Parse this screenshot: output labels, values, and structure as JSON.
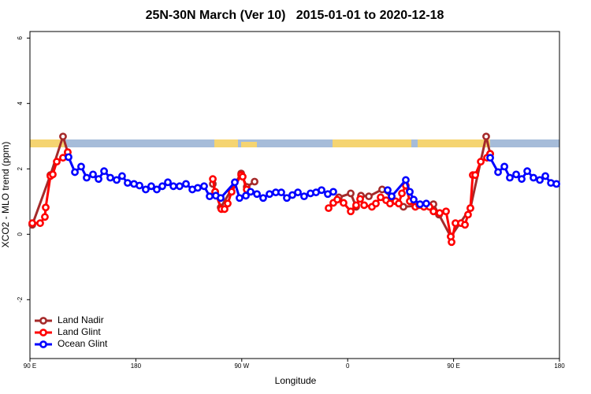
{
  "chart_data": {
    "type": "line",
    "title": "25N-30N March (Ver 10)   2015-01-01 to 2020-12-18",
    "xlabel": "Longitude",
    "ylabel": "XCO2 - MLO trend (ppm)",
    "xlim": [
      90,
      540
    ],
    "ylim": [
      -3.8,
      6.2
    ],
    "xticks": [
      {
        "value": 90,
        "label": "90 E"
      },
      180,
      {
        "value": 270,
        "label": "90 W"
      },
      {
        "value": 360,
        "label": "0"
      },
      {
        "value": 450,
        "label": "90 E"
      },
      {
        "value": 540,
        "label": "180"
      }
    ],
    "yticks": [
      -2,
      0,
      2,
      4,
      6
    ],
    "legend": "bottom-left",
    "series": [
      {
        "name": "Land Nadir",
        "color": "#a52a2a",
        "x": [
          92.0,
          107.4,
          118.1,
          122.1,
          null,
          245.4,
          247.4,
          252.1,
          269.5,
          274.2,
          280.9,
          null,
          352.5,
          362.6,
          367.2,
          371.3,
          378.0,
          389.3,
          407.4,
          432.9,
          437.6,
          447.6,
          464.3,
          477.7,
          481.1
        ],
        "values": [
          0.29,
          1.81,
          2.99,
          2.51,
          null,
          1.54,
          1.3,
          0.82,
          1.86,
          1.45,
          1.61,
          null,
          1.13,
          1.25,
          0.84,
          1.18,
          1.16,
          1.37,
          0.84,
          0.92,
          0.6,
          -0.07,
          0.8,
          2.99,
          2.46
        ]
      },
      {
        "name": "Land Glint",
        "color": "#ff0000",
        "x": [
          92.0,
          98.7,
          102.7,
          103.4,
          107.4,
          109.4,
          112.8,
          118.1,
          122.1,
          null,
          245.4,
          247.4,
          252.7,
          255.4,
          258.1,
          261.4,
          269.5,
          270.8,
          274.2,
          null,
          343.8,
          347.8,
          351.2,
          356.5,
          362.6,
          367.2,
          370.6,
          374.0,
          380.6,
          384.0,
          388.0,
          392.7,
          396.0,
          400.7,
          403.4,
          406.1,
          409.4,
          412.8,
          417.5,
          420.8,
          424.8,
          429.5,
          432.9,
          438.2,
          443.6,
          447.6,
          448.3,
          451.6,
          456.3,
          459.7,
          462.3,
          464.3,
          466.3,
          468.4,
          473.1,
          478.4,
          481.1
        ],
        "values": [
          0.34,
          0.34,
          0.53,
          0.82,
          1.78,
          1.83,
          2.22,
          2.34,
          2.51,
          null,
          1.69,
          1.3,
          0.77,
          0.77,
          0.94,
          1.3,
          1.81,
          1.76,
          1.37,
          null,
          0.8,
          0.96,
          1.06,
          0.96,
          0.7,
          0.89,
          1.08,
          0.89,
          0.84,
          0.94,
          1.13,
          1.04,
          0.94,
          1.01,
          0.94,
          1.25,
          1.49,
          1.01,
          0.84,
          0.89,
          0.84,
          0.84,
          0.7,
          0.65,
          0.7,
          -0.07,
          -0.24,
          0.34,
          0.34,
          0.29,
          0.6,
          0.8,
          1.81,
          1.81,
          2.22,
          2.34,
          2.46
        ]
      },
      {
        "name": "Ocean Glint",
        "color": "#0000ff",
        "x": [
          122.8,
          128.2,
          133.5,
          138.2,
          143.6,
          148.3,
          153.0,
          158.3,
          163.7,
          168.3,
          173.0,
          178.4,
          183.1,
          188.4,
          193.1,
          197.8,
          202.5,
          207.2,
          211.9,
          217.2,
          222.6,
          228.0,
          232.6,
          238.0,
          242.7,
          248.0,
          252.1,
          264.1,
          268.1,
          273.5,
          277.5,
          282.9,
          288.2,
          293.6,
          298.9,
          303.6,
          308.3,
          313.0,
          317.7,
          323.0,
          328.4,
          333.1,
          337.8,
          343.1,
          347.8,
          null,
          394.0,
          397.4,
          409.4,
          412.8,
          416.1,
          421.5,
          426.8,
          null,
          481.1,
          487.8,
          493.2,
          497.8,
          503.2,
          507.9,
          512.6,
          517.9,
          523.3,
          528.0,
          532.7,
          537.4
        ],
        "values": [
          2.36,
          1.9,
          2.07,
          1.73,
          1.83,
          1.69,
          1.93,
          1.73,
          1.66,
          1.78,
          1.57,
          1.54,
          1.49,
          1.37,
          1.47,
          1.37,
          1.47,
          1.59,
          1.47,
          1.47,
          1.54,
          1.37,
          1.42,
          1.47,
          1.16,
          1.18,
          1.11,
          1.59,
          1.11,
          1.18,
          1.3,
          1.23,
          1.11,
          1.23,
          1.28,
          1.28,
          1.11,
          1.2,
          1.28,
          1.16,
          1.25,
          1.28,
          1.35,
          1.23,
          1.3,
          null,
          1.35,
          1.16,
          1.66,
          1.3,
          1.06,
          0.92,
          0.94,
          null,
          2.34,
          1.9,
          2.07,
          1.73,
          1.83,
          1.69,
          1.93,
          1.73,
          1.66,
          1.78,
          1.57,
          1.54
        ]
      }
    ]
  }
}
